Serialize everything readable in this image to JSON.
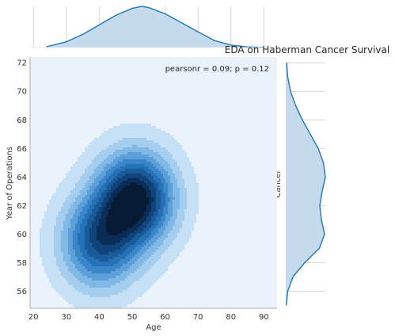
{
  "chart_data": {
    "type": "kde-jointplot",
    "title": "EDA on Haberman Cancer Survival",
    "annotation": "pearsonr = 0.09; p = 0.12",
    "xlabel": "Age",
    "ylabel": "Year of Operations",
    "marginal_ylabel": "Cancer",
    "xlim": [
      19,
      94
    ],
    "ylim": [
      54.8,
      72.4
    ],
    "x_ticks": [
      20,
      30,
      40,
      50,
      60,
      70,
      80,
      90
    ],
    "y_ticks": [
      56,
      58,
      60,
      62,
      64,
      66,
      68,
      70,
      72
    ],
    "x_tick_labels": [
      "20",
      "30",
      "40",
      "50",
      "60",
      "70",
      "80",
      "90"
    ],
    "y_tick_labels": [
      "56",
      "58",
      "60",
      "62",
      "64",
      "66",
      "68",
      "70",
      "72"
    ],
    "contour_levels": 10,
    "density_peaks": [
      {
        "age": 51,
        "year": 62.5,
        "relative_density": 1.0
      },
      {
        "age": 40,
        "year": 59.4,
        "relative_density": 0.7
      }
    ],
    "marginal_x_kde": {
      "x": [
        24,
        30,
        35,
        40,
        45,
        50,
        53,
        55,
        60,
        65,
        70,
        75,
        80,
        85,
        90
      ],
      "density": [
        0.02,
        0.14,
        0.32,
        0.55,
        0.78,
        0.95,
        1.0,
        0.97,
        0.82,
        0.6,
        0.38,
        0.17,
        0.06,
        0.015,
        0.0
      ]
    },
    "marginal_y_kde": {
      "y": [
        55,
        56,
        57,
        58,
        59,
        60,
        61,
        62,
        63,
        64,
        65,
        66,
        67,
        68,
        69,
        70,
        71,
        72
      ],
      "density": [
        0.01,
        0.05,
        0.18,
        0.48,
        0.85,
        0.98,
        0.9,
        0.86,
        0.92,
        1.0,
        0.95,
        0.82,
        0.62,
        0.42,
        0.25,
        0.12,
        0.05,
        0.02
      ]
    },
    "colors": {
      "plot_background": "#eaf3fb",
      "contour_fills": [
        "#c6e0f5",
        "#a5cdee",
        "#80b8e6",
        "#5c9fd9",
        "#3a86c9",
        "#2571b5",
        "#195a98",
        "#10437a",
        "#0a2d57",
        "#061a34"
      ],
      "marginal_line": "#1f77b4",
      "marginal_fill": "#c5daec",
      "grid": "#cccccc"
    }
  }
}
